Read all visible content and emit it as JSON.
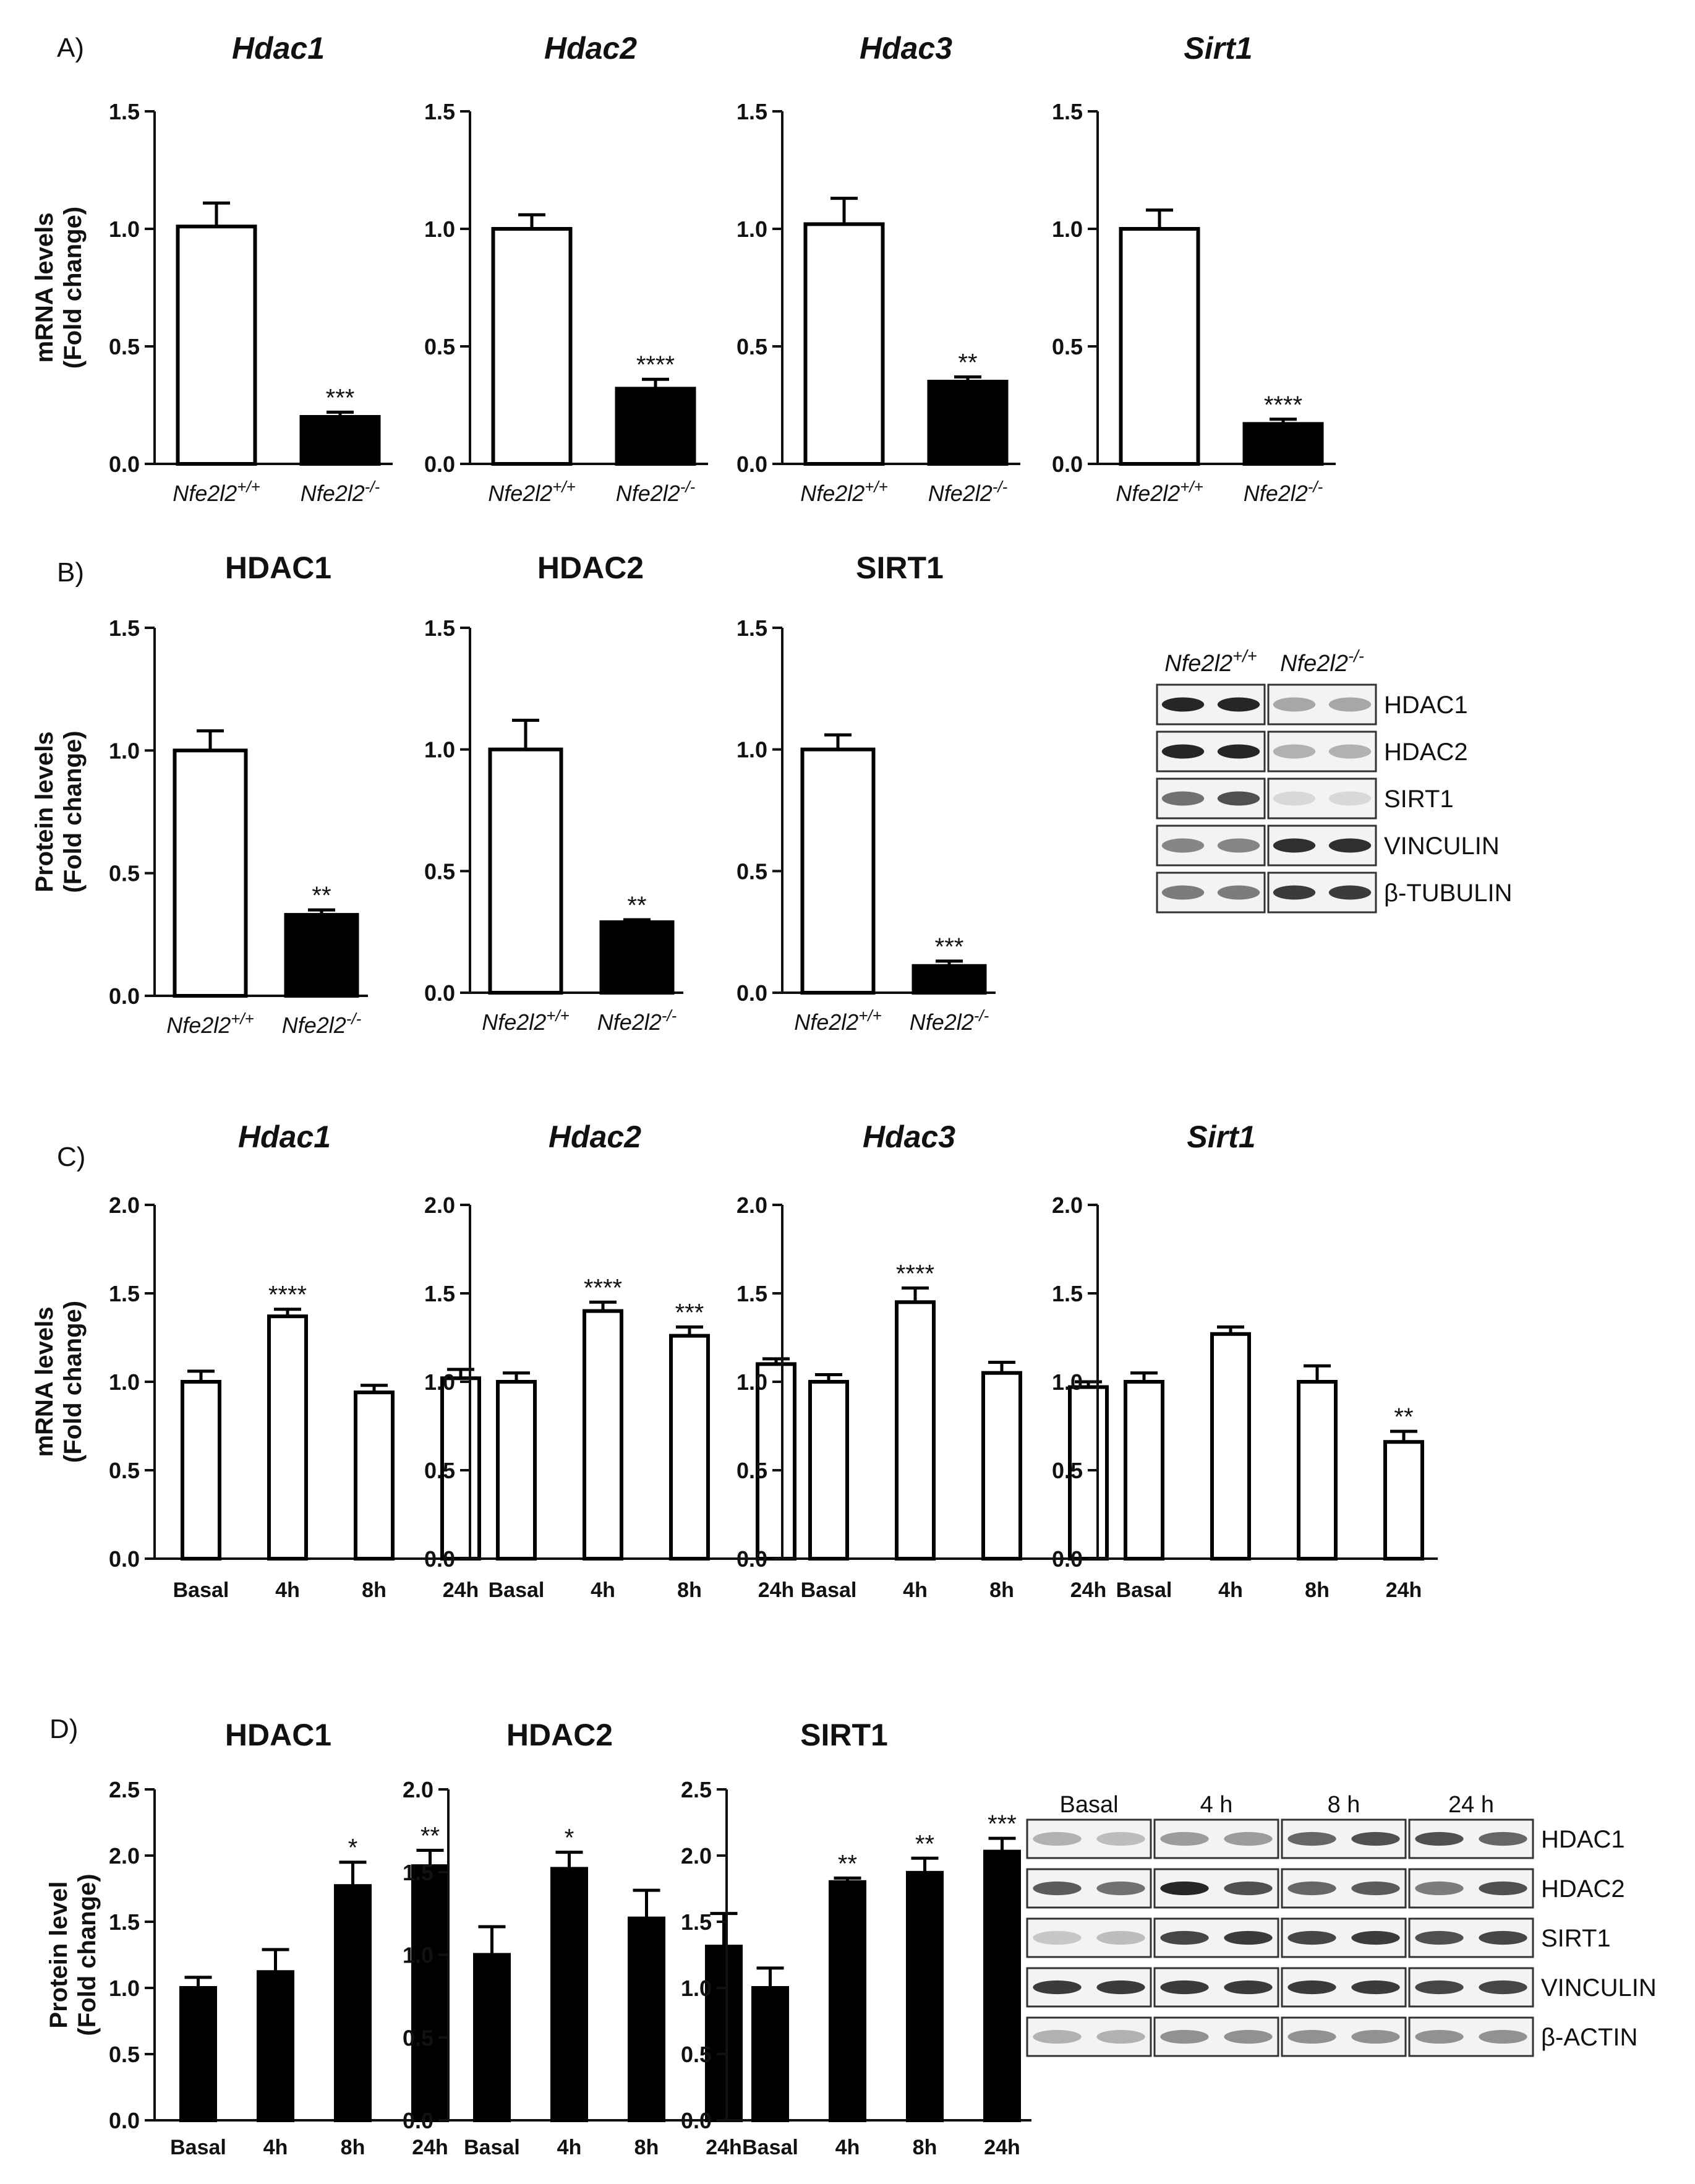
{
  "figure": {
    "panels": [
      {
        "id": "A",
        "label": "A)"
      },
      {
        "id": "B",
        "label": "B)"
      },
      {
        "id": "C",
        "label": "C)"
      },
      {
        "id": "D",
        "label": "D)"
      }
    ]
  },
  "chart_data": [
    {
      "id": "A1",
      "panel": "A",
      "type": "bar",
      "title": "Hdac1",
      "italic": true,
      "ylabel": [
        "mRNA levels",
        "(Fold change)"
      ],
      "ylim": [
        0,
        1.5
      ],
      "yticks": [
        0.0,
        0.5,
        1.0,
        1.5
      ],
      "categories": [
        "Nfe2l2+/+",
        "Nfe2l2-/-"
      ],
      "values": [
        1.01,
        0.2
      ],
      "errors": [
        0.1,
        0.02
      ],
      "fills": [
        "white",
        "black"
      ],
      "significance": [
        "",
        "***"
      ]
    },
    {
      "id": "A2",
      "panel": "A",
      "type": "bar",
      "title": "Hdac2",
      "italic": true,
      "ylabel": [],
      "ylim": [
        0,
        1.5
      ],
      "yticks": [
        0.0,
        0.5,
        1.0,
        1.5
      ],
      "categories": [
        "Nfe2l2+/+",
        "Nfe2l2-/-"
      ],
      "values": [
        1.0,
        0.32
      ],
      "errors": [
        0.06,
        0.04
      ],
      "fills": [
        "white",
        "black"
      ],
      "significance": [
        "",
        "****"
      ]
    },
    {
      "id": "A3",
      "panel": "A",
      "type": "bar",
      "title": "Hdac3",
      "italic": true,
      "ylabel": [],
      "ylim": [
        0,
        1.5
      ],
      "yticks": [
        0.0,
        0.5,
        1.0,
        1.5
      ],
      "categories": [
        "Nfe2l2+/+",
        "Nfe2l2-/-"
      ],
      "values": [
        1.02,
        0.35
      ],
      "errors": [
        0.11,
        0.02
      ],
      "fills": [
        "white",
        "black"
      ],
      "significance": [
        "",
        "**"
      ]
    },
    {
      "id": "A4",
      "panel": "A",
      "type": "bar",
      "title": "Sirt1",
      "italic": true,
      "ylabel": [],
      "ylim": [
        0,
        1.5
      ],
      "yticks": [
        0.0,
        0.5,
        1.0,
        1.5
      ],
      "categories": [
        "Nfe2l2+/+",
        "Nfe2l2-/-"
      ],
      "values": [
        1.0,
        0.17
      ],
      "errors": [
        0.08,
        0.02
      ],
      "fills": [
        "white",
        "black"
      ],
      "significance": [
        "",
        "****"
      ]
    },
    {
      "id": "B1",
      "panel": "B",
      "type": "bar",
      "title": "HDAC1",
      "italic": false,
      "ylabel": [
        "Protein levels",
        "(Fold change)"
      ],
      "ylim": [
        0,
        1.5
      ],
      "yticks": [
        0.0,
        0.5,
        1.0,
        1.5
      ],
      "categories": [
        "Nfe2l2+/+",
        "Nfe2l2-/-"
      ],
      "values": [
        1.0,
        0.33
      ],
      "errors": [
        0.08,
        0.02
      ],
      "fills": [
        "white",
        "black"
      ],
      "significance": [
        "",
        "**"
      ]
    },
    {
      "id": "B2",
      "panel": "B",
      "type": "bar",
      "title": "HDAC2",
      "italic": false,
      "ylabel": [],
      "ylim": [
        0,
        1.5
      ],
      "yticks": [
        0.0,
        0.5,
        1.0,
        1.5
      ],
      "categories": [
        "Nfe2l2+/+",
        "Nfe2l2-/-"
      ],
      "values": [
        1.0,
        0.29
      ],
      "errors": [
        0.12,
        0.01
      ],
      "fills": [
        "white",
        "black"
      ],
      "significance": [
        "",
        "**"
      ]
    },
    {
      "id": "B3",
      "panel": "B",
      "type": "bar",
      "title": "SIRT1",
      "italic": false,
      "ylabel": [],
      "ylim": [
        0,
        1.5
      ],
      "yticks": [
        0.0,
        0.5,
        1.0,
        1.5
      ],
      "categories": [
        "Nfe2l2+/+",
        "Nfe2l2-/-"
      ],
      "values": [
        1.0,
        0.11
      ],
      "errors": [
        0.06,
        0.02
      ],
      "fills": [
        "white",
        "black"
      ],
      "significance": [
        "",
        "***"
      ]
    },
    {
      "id": "C1",
      "panel": "C",
      "type": "bar",
      "title": "Hdac1",
      "italic": true,
      "ylabel": [
        "mRNA levels",
        "(Fold change)"
      ],
      "ylim": [
        0,
        2.0
      ],
      "yticks": [
        0.0,
        0.5,
        1.0,
        1.5,
        2.0
      ],
      "categories": [
        "Basal",
        "4h",
        "8h",
        "24h"
      ],
      "values": [
        1.0,
        1.37,
        0.94,
        1.02
      ],
      "errors": [
        0.06,
        0.04,
        0.04,
        0.05
      ],
      "fills": [
        "white",
        "white",
        "white",
        "white"
      ],
      "significance": [
        "",
        "****",
        "",
        ""
      ]
    },
    {
      "id": "C2",
      "panel": "C",
      "type": "bar",
      "title": "Hdac2",
      "italic": true,
      "ylabel": [],
      "ylim": [
        0,
        2.0
      ],
      "yticks": [
        0.0,
        0.5,
        1.0,
        1.5,
        2.0
      ],
      "categories": [
        "Basal",
        "4h",
        "8h",
        "24h"
      ],
      "values": [
        1.0,
        1.4,
        1.26,
        1.1
      ],
      "errors": [
        0.05,
        0.05,
        0.05,
        0.03
      ],
      "fills": [
        "white",
        "white",
        "white",
        "white"
      ],
      "significance": [
        "",
        "****",
        "***",
        ""
      ]
    },
    {
      "id": "C3",
      "panel": "C",
      "type": "bar",
      "title": "Hdac3",
      "italic": true,
      "ylabel": [],
      "ylim": [
        0,
        2.0
      ],
      "yticks": [
        0.0,
        0.5,
        1.0,
        1.5,
        2.0
      ],
      "categories": [
        "Basal",
        "4h",
        "8h",
        "24h"
      ],
      "values": [
        1.0,
        1.45,
        1.05,
        0.97
      ],
      "errors": [
        0.04,
        0.08,
        0.06,
        0.03
      ],
      "fills": [
        "white",
        "white",
        "white",
        "white"
      ],
      "significance": [
        "",
        "****",
        "",
        ""
      ]
    },
    {
      "id": "C4",
      "panel": "C",
      "type": "bar",
      "title": "Sirt1",
      "italic": true,
      "ylabel": [],
      "ylim": [
        0,
        2.0
      ],
      "yticks": [
        0.0,
        0.5,
        1.0,
        1.5,
        2.0
      ],
      "categories": [
        "Basal",
        "4h",
        "8h",
        "24h"
      ],
      "values": [
        1.0,
        1.27,
        1.0,
        0.66
      ],
      "errors": [
        0.05,
        0.04,
        0.09,
        0.06
      ],
      "fills": [
        "white",
        "white",
        "white",
        "white"
      ],
      "significance": [
        "",
        "",
        "",
        "**"
      ]
    },
    {
      "id": "D1",
      "panel": "D",
      "type": "bar",
      "title": "HDAC1",
      "italic": false,
      "ylabel": [
        "Protein level",
        "(Fold change)"
      ],
      "ylim": [
        0,
        2.5
      ],
      "yticks": [
        0.0,
        0.5,
        1.0,
        1.5,
        2.0,
        2.5
      ],
      "categories": [
        "Basal",
        "4h",
        "8h",
        "24h"
      ],
      "values": [
        1.0,
        1.12,
        1.77,
        1.92
      ],
      "errors": [
        0.08,
        0.17,
        0.18,
        0.12
      ],
      "fills": [
        "black",
        "black",
        "black",
        "black"
      ],
      "significance": [
        "",
        "",
        "*",
        "**"
      ]
    },
    {
      "id": "D2",
      "panel": "D",
      "type": "bar",
      "title": "HDAC2",
      "italic": false,
      "ylabel": [],
      "ylim": [
        0,
        2.0
      ],
      "yticks": [
        0.0,
        0.5,
        1.0,
        1.5,
        2.0
      ],
      "categories": [
        "Basal",
        "4h",
        "8h",
        "24h"
      ],
      "values": [
        1.0,
        1.52,
        1.22,
        1.05
      ],
      "errors": [
        0.17,
        0.1,
        0.17,
        0.2
      ],
      "fills": [
        "black",
        "black",
        "black",
        "black"
      ],
      "significance": [
        "",
        "*",
        "",
        ""
      ]
    },
    {
      "id": "D3",
      "panel": "D",
      "type": "bar",
      "title": "SIRT1",
      "italic": false,
      "ylabel": [],
      "ylim": [
        0,
        2.5
      ],
      "yticks": [
        0.0,
        0.5,
        1.0,
        1.5,
        2.0,
        2.5
      ],
      "categories": [
        "Basal",
        "4h",
        "8h",
        "24h"
      ],
      "values": [
        1.0,
        1.8,
        1.87,
        2.03
      ],
      "errors": [
        0.15,
        0.03,
        0.11,
        0.1
      ],
      "fills": [
        "black",
        "black",
        "black",
        "black"
      ],
      "significance": [
        "",
        "**",
        "**",
        "***"
      ]
    }
  ],
  "blots": [
    {
      "id": "blotB",
      "panel": "B",
      "groups": [
        "Nfe2l2+/+",
        "Nfe2l2-/-"
      ],
      "rows": [
        {
          "label": "HDAC1",
          "intensity": [
            0.95,
            0.95,
            0.35,
            0.35
          ]
        },
        {
          "label": "HDAC2",
          "intensity": [
            0.95,
            0.95,
            0.3,
            0.3
          ]
        },
        {
          "label": "SIRT1",
          "intensity": [
            0.6,
            0.75,
            0.12,
            0.12
          ]
        },
        {
          "label": "VINCULIN",
          "intensity": [
            0.5,
            0.5,
            0.9,
            0.9
          ]
        },
        {
          "label": "β-TUBULIN",
          "intensity": [
            0.55,
            0.55,
            0.85,
            0.85
          ]
        }
      ]
    },
    {
      "id": "blotD",
      "panel": "D",
      "groups": [
        "Basal",
        "4 h",
        "8 h",
        "24 h"
      ],
      "rows": [
        {
          "label": "HDAC1",
          "intensity": [
            0.3,
            0.25,
            0.4,
            0.4,
            0.65,
            0.75,
            0.75,
            0.65
          ]
        },
        {
          "label": "HDAC2",
          "intensity": [
            0.7,
            0.6,
            0.95,
            0.75,
            0.65,
            0.7,
            0.55,
            0.75
          ]
        },
        {
          "label": "SIRT1",
          "intensity": [
            0.2,
            0.25,
            0.8,
            0.85,
            0.8,
            0.85,
            0.75,
            0.8
          ]
        },
        {
          "label": "VINCULIN",
          "intensity": [
            0.85,
            0.85,
            0.85,
            0.85,
            0.85,
            0.85,
            0.8,
            0.8
          ]
        },
        {
          "label": "β-ACTIN",
          "intensity": [
            0.3,
            0.3,
            0.45,
            0.45,
            0.45,
            0.45,
            0.45,
            0.45
          ]
        }
      ]
    }
  ]
}
